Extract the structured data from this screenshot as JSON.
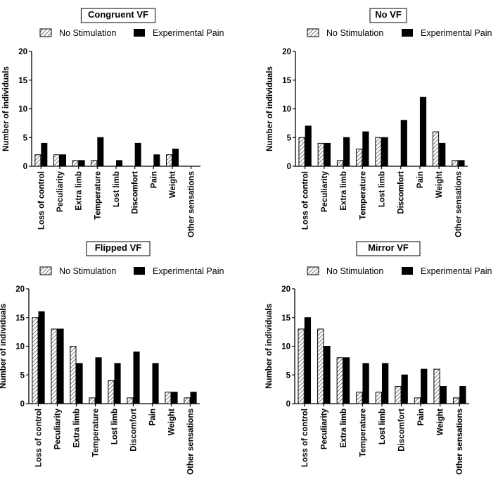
{
  "colors": {
    "no_stim": "#e8e8e8",
    "pain": "#000000",
    "axis": "#000000",
    "background": "#ffffff"
  },
  "legend_labels": [
    "No Stimulation",
    "Experimental Pain"
  ],
  "chart_data": [
    {
      "type": "bar",
      "title": "Congruent VF",
      "xlabel": "",
      "ylabel": "Number of individuals",
      "ylim": [
        0,
        20
      ],
      "yticks": [
        0,
        5,
        10,
        15,
        20
      ],
      "grid": false,
      "legend": "top",
      "categories": [
        "Loss of control",
        "Peculiarity",
        "Extra limb",
        "Temperature",
        "Lost limb",
        "Discomfort",
        "Pain",
        "Weight",
        "Other sensations"
      ],
      "series": [
        {
          "name": "No Stimulation",
          "pattern": "hatched",
          "values": [
            2,
            2,
            1,
            1,
            0,
            0,
            0,
            2,
            0
          ]
        },
        {
          "name": "Experimental Pain",
          "pattern": "solid",
          "values": [
            4,
            2,
            1,
            5,
            1,
            4,
            2,
            3,
            0
          ]
        }
      ]
    },
    {
      "type": "bar",
      "title": "No VF",
      "xlabel": "",
      "ylabel": "Number of individuals",
      "ylim": [
        0,
        20
      ],
      "yticks": [
        0,
        5,
        10,
        15,
        20
      ],
      "grid": false,
      "legend": "top",
      "categories": [
        "Loss of control",
        "Peculiarity",
        "Extra limb",
        "Temperature",
        "Lost limb",
        "Discomfort",
        "Pain",
        "Weight",
        "Other sensations"
      ],
      "series": [
        {
          "name": "No Stimulation",
          "pattern": "hatched",
          "values": [
            5,
            4,
            1,
            3,
            5,
            0,
            0,
            6,
            1
          ]
        },
        {
          "name": "Experimental Pain",
          "pattern": "solid",
          "values": [
            7,
            4,
            5,
            6,
            5,
            8,
            12,
            4,
            1
          ]
        }
      ]
    },
    {
      "type": "bar",
      "title": "Flipped VF",
      "xlabel": "",
      "ylabel": "Number of individuals",
      "ylim": [
        0,
        20
      ],
      "yticks": [
        0,
        5,
        10,
        15,
        20
      ],
      "grid": false,
      "legend": "top",
      "categories": [
        "Loss of control",
        "Peculiarity",
        "Extra limb",
        "Temperature",
        "Lost limb",
        "Discomfort",
        "Pain",
        "Weight",
        "Other sensations"
      ],
      "series": [
        {
          "name": "No Stimulation",
          "pattern": "hatched",
          "values": [
            15,
            13,
            10,
            1,
            4,
            1,
            0,
            2,
            1
          ]
        },
        {
          "name": "Experimental Pain",
          "pattern": "solid",
          "values": [
            16,
            13,
            7,
            8,
            7,
            9,
            7,
            2,
            2
          ]
        }
      ]
    },
    {
      "type": "bar",
      "title": "Mirror  VF",
      "xlabel": "",
      "ylabel": "Number of individuals",
      "ylim": [
        0,
        20
      ],
      "yticks": [
        0,
        5,
        10,
        15,
        20
      ],
      "grid": false,
      "legend": "top",
      "categories": [
        "Loss of control",
        "Peculiarity",
        "Extra limb",
        "Temperature",
        "Lost limb",
        "Discomfort",
        "Pain",
        "Weight",
        "Other sensations"
      ],
      "series": [
        {
          "name": "No Stimulation",
          "pattern": "hatched",
          "values": [
            13,
            13,
            8,
            2,
            2,
            3,
            1,
            6,
            1
          ]
        },
        {
          "name": "Experimental Pain",
          "pattern": "solid",
          "values": [
            15,
            10,
            8,
            7,
            7,
            5,
            6,
            3,
            3
          ]
        }
      ]
    }
  ]
}
